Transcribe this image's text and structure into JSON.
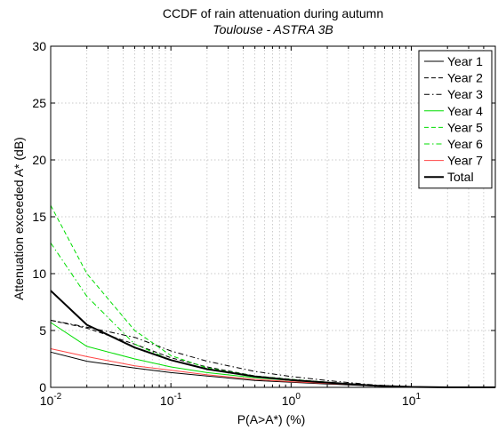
{
  "chart_data": {
    "type": "line",
    "title": "CCDF of rain attenuation during autumn",
    "subtitle": "Toulouse - ASTRA 3B",
    "xlabel": "P(A>A*) (%)",
    "ylabel": "Attenuation exceeded A* (dB)",
    "xscale": "log",
    "xlim": [
      0.01,
      50
    ],
    "ylim": [
      0,
      30
    ],
    "xticks": [
      {
        "value": 0.01,
        "base": "10",
        "exp": "-2"
      },
      {
        "value": 0.1,
        "base": "10",
        "exp": "-1"
      },
      {
        "value": 1,
        "base": "10",
        "exp": "0"
      },
      {
        "value": 10,
        "base": "10",
        "exp": "1"
      }
    ],
    "yticks": [
      "0",
      "5",
      "10",
      "15",
      "20",
      "25",
      "30"
    ],
    "grid": true,
    "legend_position": "top-right",
    "series": [
      {
        "name": "Year 1",
        "color": "#000000",
        "dash": "solid",
        "width": 1,
        "x": [
          0.01,
          0.02,
          0.05,
          0.1,
          0.2,
          0.5,
          1,
          2,
          5,
          10,
          20,
          50
        ],
        "y": [
          3.1,
          2.3,
          1.7,
          1.3,
          1.0,
          0.6,
          0.45,
          0.3,
          0.12,
          0.03,
          0,
          0
        ]
      },
      {
        "name": "Year 2",
        "color": "#000000",
        "dash": "dashed",
        "width": 1,
        "x": [
          0.01,
          0.02,
          0.05,
          0.1,
          0.2,
          0.5,
          1,
          2,
          5,
          10,
          20,
          50
        ],
        "y": [
          5.9,
          5.2,
          3.8,
          2.6,
          1.8,
          1.0,
          0.7,
          0.45,
          0.15,
          0.03,
          0,
          0
        ]
      },
      {
        "name": "Year 3",
        "color": "#000000",
        "dash": "dashdot",
        "width": 1,
        "x": [
          0.01,
          0.02,
          0.05,
          0.1,
          0.2,
          0.5,
          1,
          2,
          5,
          10,
          20,
          50
        ],
        "y": [
          5.9,
          5.3,
          4.4,
          3.2,
          2.3,
          1.4,
          0.95,
          0.6,
          0.2,
          0.05,
          0,
          0
        ]
      },
      {
        "name": "Year 4",
        "color": "#00dd00",
        "dash": "solid",
        "width": 1,
        "x": [
          0.01,
          0.02,
          0.05,
          0.1,
          0.2,
          0.5,
          1,
          2,
          5,
          10,
          20,
          50
        ],
        "y": [
          5.7,
          3.6,
          2.5,
          1.8,
          1.3,
          0.85,
          0.6,
          0.4,
          0.15,
          0.04,
          0,
          0
        ]
      },
      {
        "name": "Year 5",
        "color": "#00dd00",
        "dash": "dashed",
        "width": 1,
        "x": [
          0.01,
          0.02,
          0.05,
          0.1,
          0.2,
          0.5,
          1,
          2,
          5,
          10,
          20,
          50
        ],
        "y": [
          16.0,
          10.0,
          5.0,
          2.8,
          1.7,
          1.0,
          0.7,
          0.45,
          0.15,
          0.04,
          0,
          0
        ]
      },
      {
        "name": "Year 6",
        "color": "#00dd00",
        "dash": "dashdot",
        "width": 1,
        "x": [
          0.01,
          0.02,
          0.05,
          0.1,
          0.2,
          0.5,
          1,
          2,
          5,
          10,
          20,
          50
        ],
        "y": [
          12.7,
          8.0,
          3.8,
          2.4,
          1.6,
          0.95,
          0.65,
          0.42,
          0.15,
          0.04,
          0,
          0
        ]
      },
      {
        "name": "Year 7",
        "color": "#ff4444",
        "dash": "solid",
        "width": 1,
        "x": [
          0.01,
          0.02,
          0.05,
          0.1,
          0.2,
          0.5,
          1,
          2,
          5,
          10,
          20,
          50
        ],
        "y": [
          3.4,
          2.7,
          1.9,
          1.5,
          1.1,
          0.7,
          0.5,
          0.35,
          0.15,
          0.04,
          0,
          0
        ]
      },
      {
        "name": "Total",
        "color": "#000000",
        "dash": "solid",
        "width": 2,
        "x": [
          0.01,
          0.02,
          0.05,
          0.1,
          0.2,
          0.5,
          1,
          2,
          5,
          10,
          20,
          50
        ],
        "y": [
          8.5,
          5.5,
          3.5,
          2.4,
          1.6,
          0.95,
          0.65,
          0.42,
          0.15,
          0.04,
          0,
          0
        ]
      }
    ]
  }
}
